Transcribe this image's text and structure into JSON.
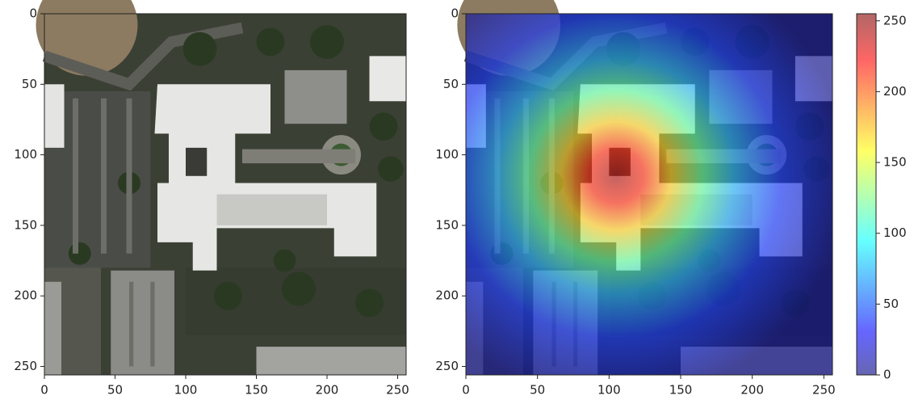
{
  "chart_data": [
    {
      "type": "image",
      "xlim": [
        0,
        256
      ],
      "ylim": [
        256,
        0
      ],
      "xticks": [
        0,
        50,
        100,
        150,
        200,
        250
      ],
      "yticks": [
        0,
        50,
        100,
        150,
        200,
        250
      ]
    },
    {
      "type": "heatmap",
      "xlim": [
        0,
        256
      ],
      "ylim": [
        256,
        0
      ],
      "xticks": [
        0,
        50,
        100,
        150,
        200,
        250
      ],
      "yticks": [
        0,
        50,
        100,
        150,
        200,
        250
      ],
      "colormap": "jet"
    },
    {
      "type": "colorbar",
      "ylim": [
        0,
        255
      ],
      "yticks": [
        0,
        50,
        100,
        150,
        200,
        250
      ],
      "colormap": "jet"
    }
  ]
}
